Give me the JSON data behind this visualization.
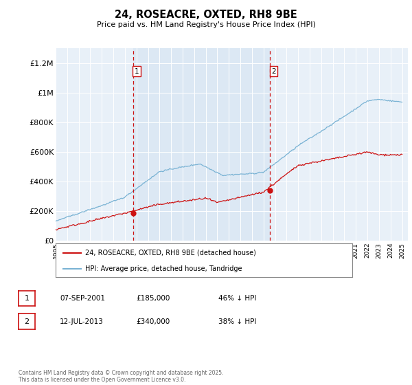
{
  "title": "24, ROSEACRE, OXTED, RH8 9BE",
  "subtitle": "Price paid vs. HM Land Registry's House Price Index (HPI)",
  "ylabel_ticks": [
    "£0",
    "£200K",
    "£400K",
    "£600K",
    "£800K",
    "£1M",
    "£1.2M"
  ],
  "ytick_values": [
    0,
    200000,
    400000,
    600000,
    800000,
    1000000,
    1200000
  ],
  "ylim": [
    0,
    1300000
  ],
  "xlim_start": 1995.0,
  "xlim_end": 2025.5,
  "hpi_color": "#7ab3d4",
  "price_color": "#cc1111",
  "bg_plot": "#e8f0f8",
  "shade_color": "#dce8f4",
  "transaction1_x": 2001.69,
  "transaction1_y": 185000,
  "transaction2_x": 2013.53,
  "transaction2_y": 340000,
  "legend_house_label": "24, ROSEACRE, OXTED, RH8 9BE (detached house)",
  "legend_hpi_label": "HPI: Average price, detached house, Tandridge",
  "table_row1": [
    "1",
    "07-SEP-2001",
    "£185,000",
    "46% ↓ HPI"
  ],
  "table_row2": [
    "2",
    "12-JUL-2013",
    "£340,000",
    "38% ↓ HPI"
  ],
  "footnote": "Contains HM Land Registry data © Crown copyright and database right 2025.\nThis data is licensed under the Open Government Licence v3.0."
}
